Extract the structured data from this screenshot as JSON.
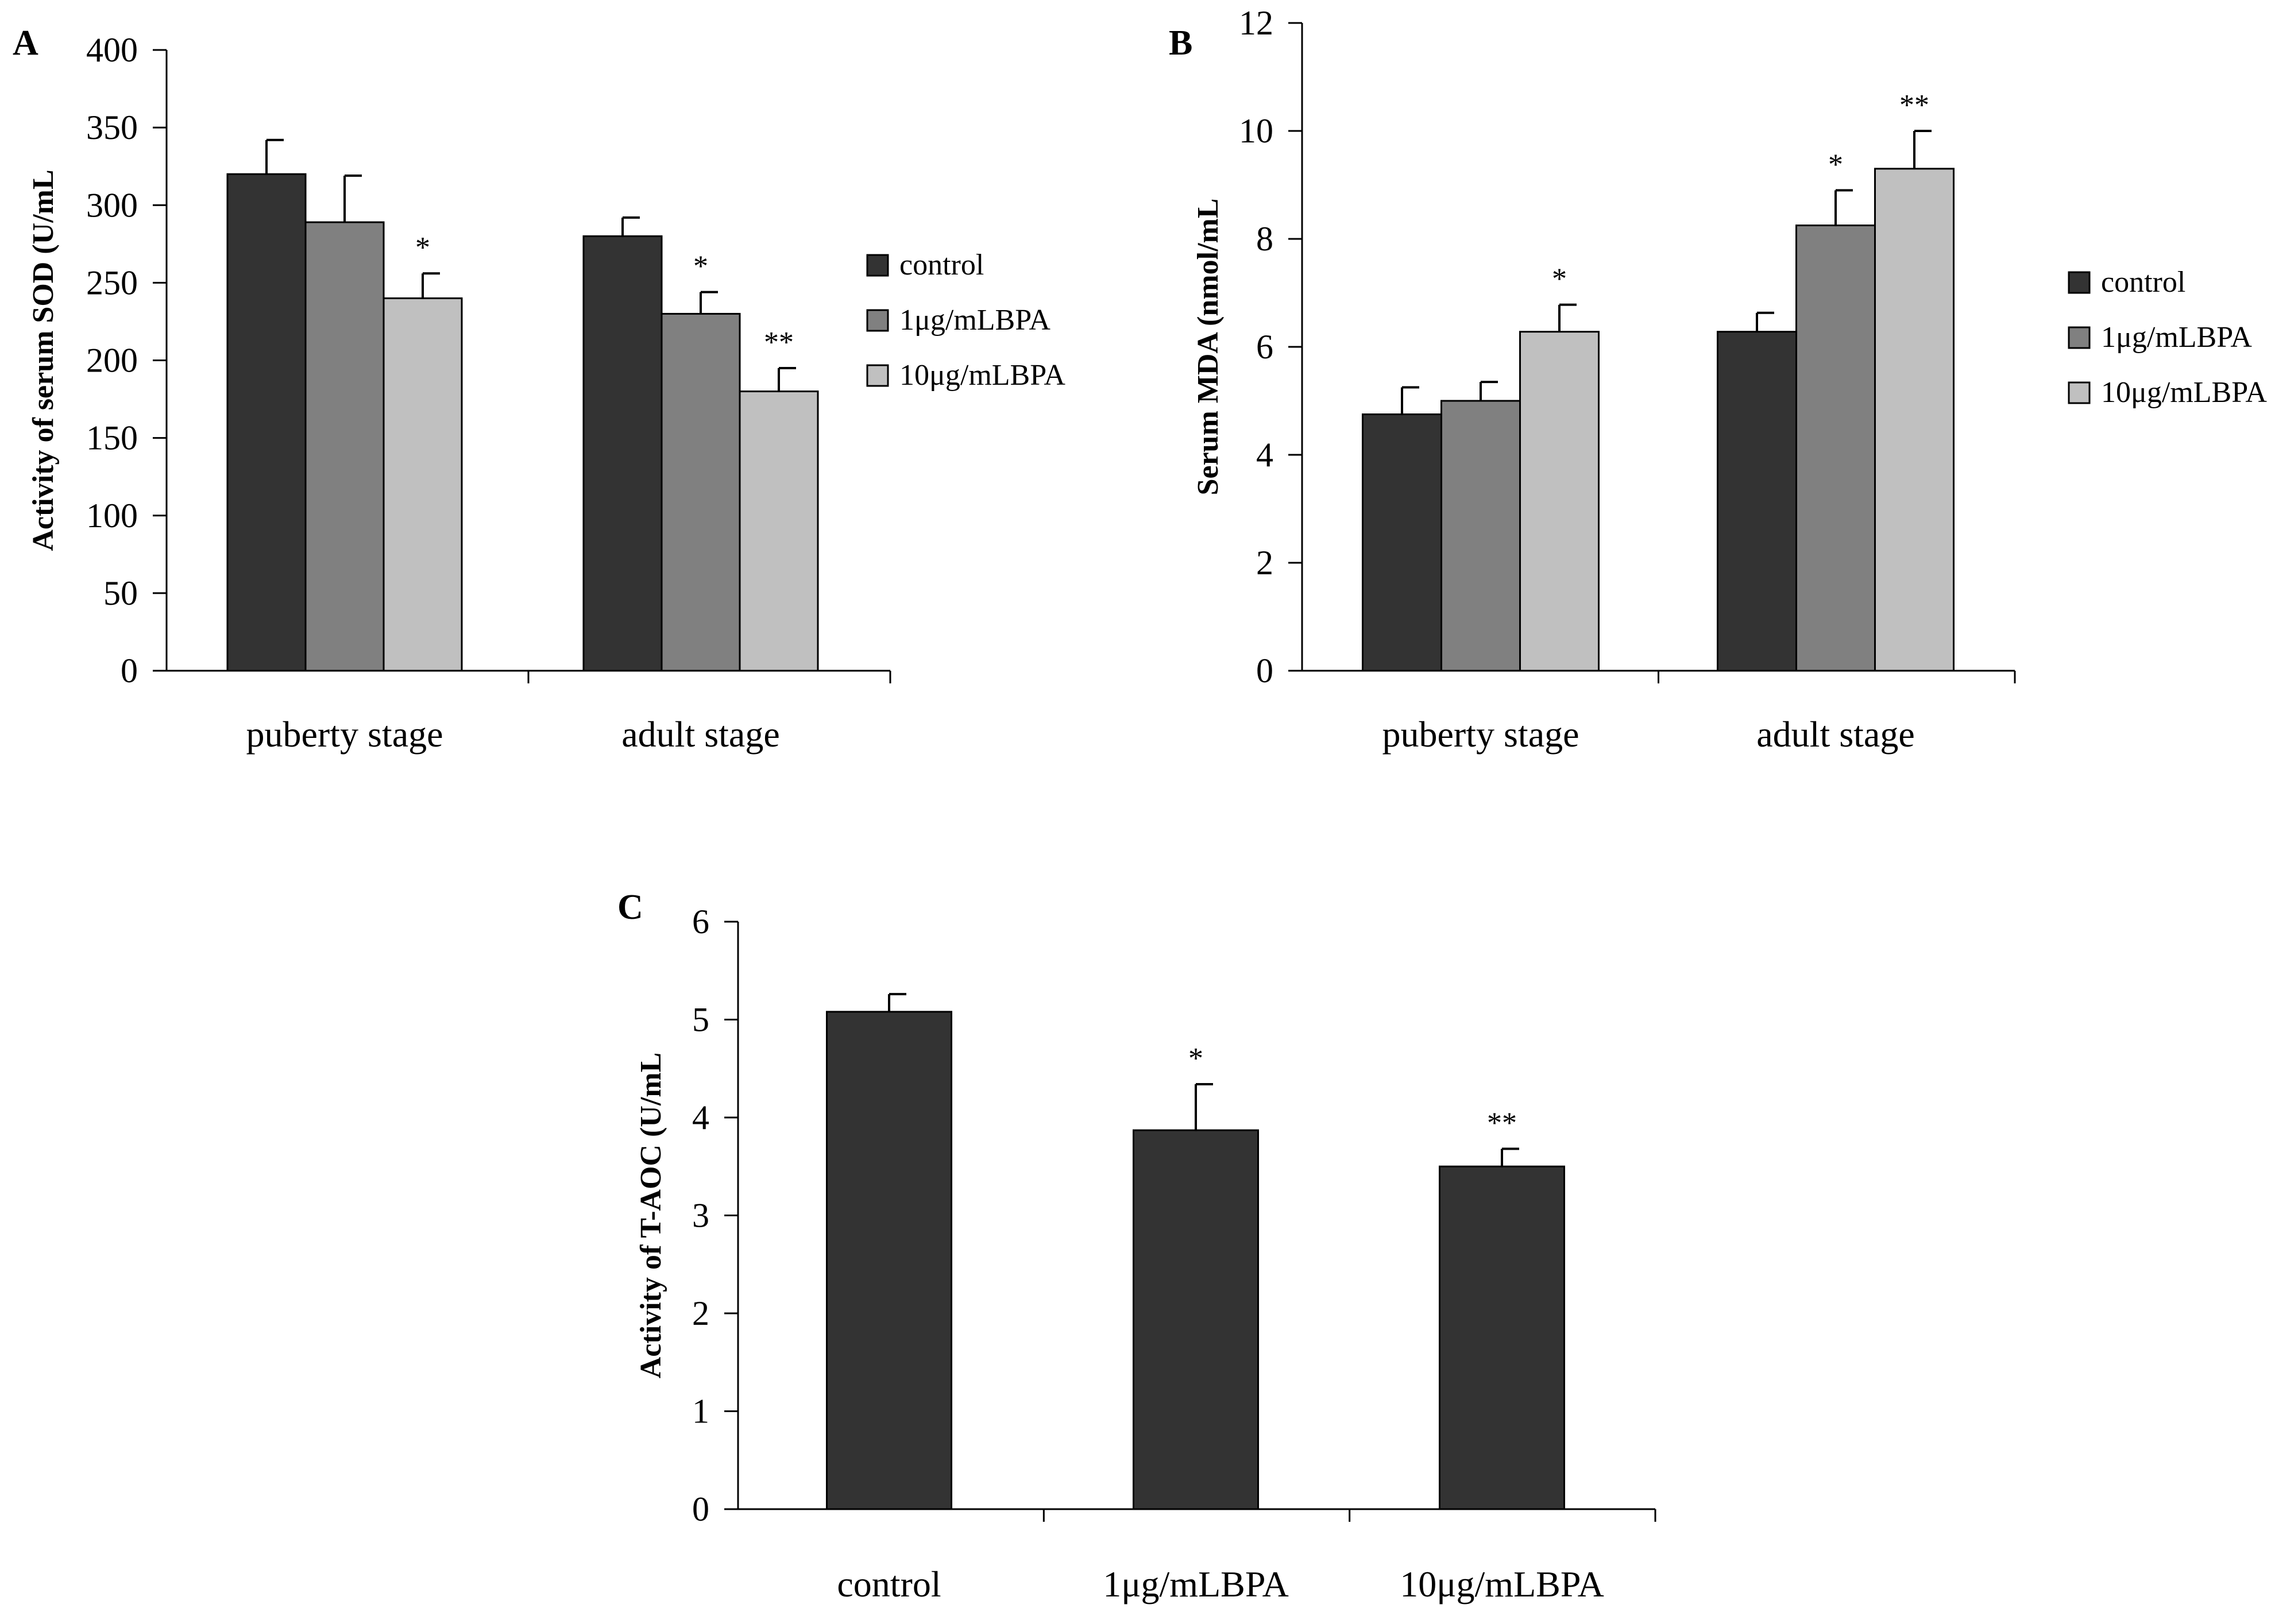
{
  "figure": {
    "colors": {
      "control": "#333333",
      "low": "#808080",
      "high": "#c0c0c0",
      "axis": "#000000"
    }
  },
  "chart_data": [
    {
      "type": "bar",
      "panel_label": "A",
      "ylabel": "Activity of serum SOD (U/mL",
      "ylim": [
        0,
        400
      ],
      "yticks": [
        0,
        50,
        100,
        150,
        200,
        250,
        300,
        350,
        400
      ],
      "categories": [
        "puberty stage",
        "adult stage"
      ],
      "series": [
        {
          "name": "control",
          "values": [
            320,
            280
          ],
          "errors": [
            22,
            12
          ],
          "sig": [
            "",
            ""
          ]
        },
        {
          "name": "1μg/mLBPA",
          "values": [
            289,
            230
          ],
          "errors": [
            30,
            14
          ],
          "sig": [
            "",
            "*"
          ]
        },
        {
          "name": "10μg/mLBPA",
          "values": [
            240,
            180
          ],
          "errors": [
            16,
            15
          ],
          "sig": [
            "*",
            "**"
          ]
        }
      ],
      "legend": "right",
      "grid": false
    },
    {
      "type": "bar",
      "panel_label": "B",
      "ylabel": "Serum MDA (nmol/mL",
      "ylim": [
        0,
        12
      ],
      "yticks": [
        0,
        2,
        4,
        6,
        8,
        10,
        12
      ],
      "categories": [
        "puberty stage",
        "adult stage"
      ],
      "series": [
        {
          "name": "control",
          "values": [
            4.75,
            6.28
          ],
          "errors": [
            0.5,
            0.35
          ],
          "sig": [
            "",
            ""
          ]
        },
        {
          "name": "1μg/mLBPA",
          "values": [
            5.0,
            8.25
          ],
          "errors": [
            0.35,
            0.65
          ],
          "sig": [
            "",
            "*"
          ]
        },
        {
          "name": "10μg/mLBPA",
          "values": [
            6.28,
            9.3
          ],
          "errors": [
            0.5,
            0.7
          ],
          "sig": [
            "*",
            "**"
          ]
        }
      ],
      "legend": "right",
      "grid": false
    },
    {
      "type": "bar",
      "panel_label": "C",
      "ylabel": "Activity of T-AOC (U/mL",
      "ylim": [
        0,
        6
      ],
      "yticks": [
        0,
        1,
        2,
        3,
        4,
        5,
        6
      ],
      "categories": [
        "control",
        "1μg/mLBPA",
        "10μg/mLBPA"
      ],
      "series": [
        {
          "name": "",
          "values": [
            5.08,
            3.87,
            3.5
          ],
          "errors": [
            0.18,
            0.47,
            0.18
          ],
          "sig": [
            "",
            "*",
            "**"
          ]
        }
      ],
      "legend": "none",
      "grid": false
    }
  ]
}
